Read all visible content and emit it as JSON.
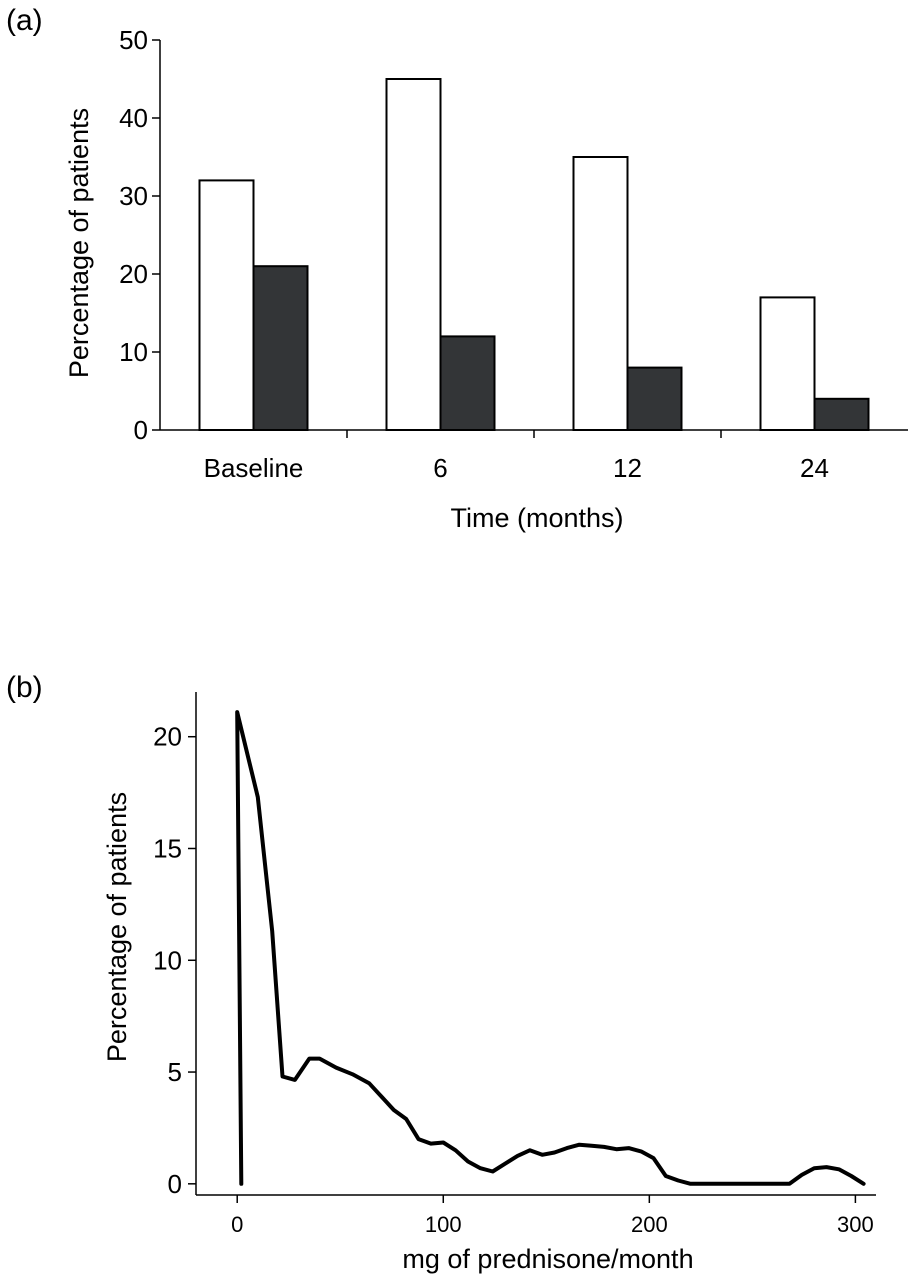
{
  "chart_data": [
    {
      "panel_label": "(a)",
      "type": "bar",
      "xlabel": "Time (months)",
      "ylabel": "Percentage of patients",
      "ylim": [
        0,
        50
      ],
      "yticks": [
        "0",
        "10",
        "20",
        "30",
        "40",
        "50"
      ],
      "categories": [
        "Baseline",
        "6",
        "12",
        "24"
      ],
      "series": [
        {
          "color": "#ffffff",
          "values": [
            32,
            45,
            35,
            17
          ]
        },
        {
          "color": "#333537",
          "values": [
            21,
            12,
            8,
            4
          ]
        }
      ],
      "grid": false,
      "legend": "none"
    },
    {
      "panel_label": "(b)",
      "type": "line",
      "xlabel": "mg of prednisone/month",
      "ylabel": "Percentage of patients",
      "xlim": [
        -20,
        310
      ],
      "ylim": [
        -0.5,
        22
      ],
      "xticks": [
        "0",
        "100",
        "200",
        "300"
      ],
      "yticks": [
        "0",
        "5",
        "10",
        "15",
        "20"
      ],
      "color": "#000000",
      "x": [
        2,
        0,
        10,
        17,
        22,
        28,
        35,
        40,
        48,
        56,
        64,
        70,
        76,
        82,
        88,
        94,
        100,
        106,
        112,
        118,
        124,
        130,
        136,
        142,
        148,
        154,
        160,
        166,
        172,
        178,
        184,
        190,
        196,
        202,
        208,
        214,
        220,
        226,
        232,
        238,
        244,
        250,
        256,
        262,
        268,
        274,
        280,
        286,
        292,
        298,
        304
      ],
      "y": [
        0,
        21.1,
        17.3,
        11.3,
        4.8,
        4.65,
        5.6,
        5.6,
        5.2,
        4.9,
        4.5,
        3.9,
        3.3,
        2.9,
        2.0,
        1.8,
        1.85,
        1.5,
        1.0,
        0.7,
        0.55,
        0.9,
        1.25,
        1.5,
        1.3,
        1.4,
        1.6,
        1.75,
        1.7,
        1.65,
        1.55,
        1.6,
        1.45,
        1.15,
        0.35,
        0.15,
        0,
        0,
        0,
        0,
        0,
        0,
        0,
        0,
        0,
        0.4,
        0.7,
        0.75,
        0.65,
        0.35,
        0
      ],
      "grid": false,
      "legend": "none"
    }
  ]
}
